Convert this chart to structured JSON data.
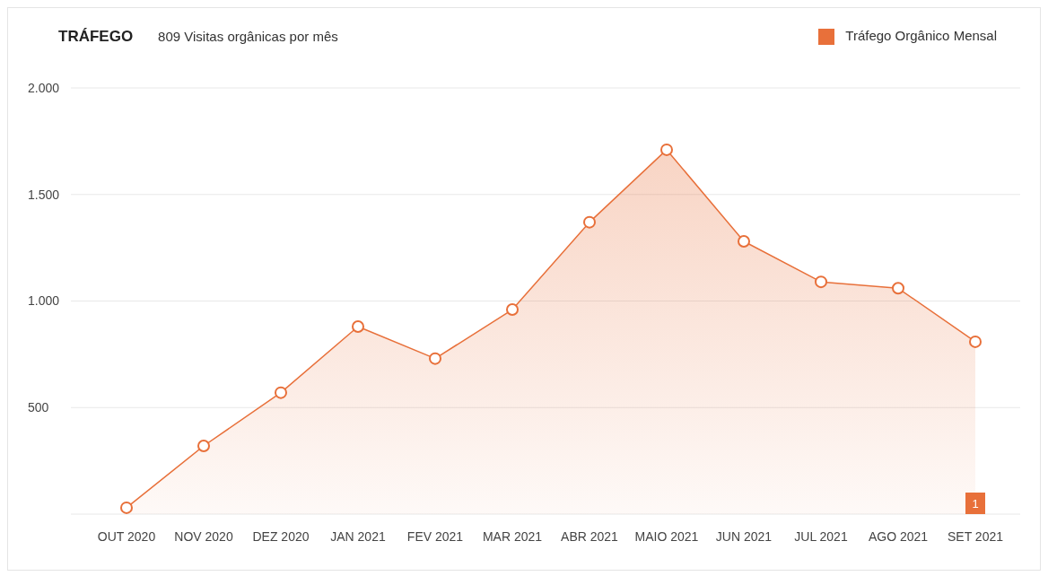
{
  "chart_data": {
    "type": "area",
    "title": "TRÁFEGO",
    "subtitle": "809 Visitas orgânicas por mês",
    "categories": [
      "OUT 2020",
      "NOV 2020",
      "DEZ 2020",
      "JAN 2021",
      "FEV 2021",
      "MAR 2021",
      "ABR 2021",
      "MAIO 2021",
      "JUN 2021",
      "JUL 2021",
      "AGO 2021",
      "SET 2021"
    ],
    "series": [
      {
        "name": "Tráfego Orgânico Mensal",
        "color": "#e8703a",
        "values": [
          30,
          320,
          570,
          880,
          730,
          960,
          1370,
          1710,
          1280,
          1090,
          1060,
          809
        ]
      }
    ],
    "ylim": [
      0,
      2000
    ],
    "yticks": [
      {
        "value": 0,
        "label": null
      },
      500,
      {
        "value": 1000,
        "label": "1.000"
      },
      {
        "value": 1500,
        "label": "1.500"
      },
      {
        "value": 2000,
        "label": "2.000"
      }
    ],
    "grid": "y",
    "legend": "top right",
    "marker": "circle",
    "line_style": "solid",
    "annotations": [
      {
        "text": "1",
        "x": "SET 2021",
        "y": 0
      }
    ]
  }
}
